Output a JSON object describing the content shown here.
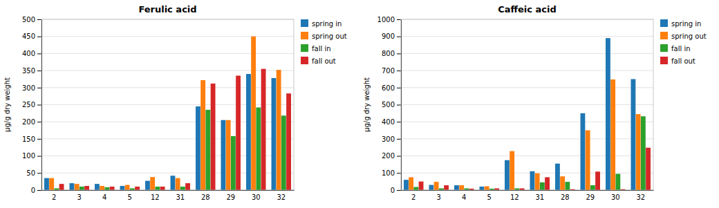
{
  "chart_data": [
    {
      "type": "bar",
      "title": "Ferulic acid",
      "categories": [
        "2",
        "3",
        "4",
        "5",
        "12",
        "31",
        "28",
        "29",
        "30",
        "32"
      ],
      "series": [
        {
          "name": "spring in",
          "values": [
            35,
            20,
            18,
            12,
            27,
            42,
            245,
            205,
            340,
            328
          ]
        },
        {
          "name": "spring out",
          "values": [
            35,
            18,
            12,
            15,
            38,
            35,
            322,
            205,
            450,
            352
          ]
        },
        {
          "name": "fall in",
          "values": [
            5,
            10,
            8,
            5,
            10,
            10,
            235,
            158,
            242,
            218
          ]
        },
        {
          "name": "fall out",
          "values": [
            18,
            12,
            10,
            10,
            10,
            20,
            312,
            335,
            355,
            283
          ]
        }
      ],
      "ylabel": "μg/g dry weight",
      "ylim": [
        0,
        500
      ],
      "yticks": [
        0,
        50,
        100,
        150,
        200,
        250,
        300,
        350,
        400,
        450,
        500
      ],
      "grid": true,
      "legend": "right"
    },
    {
      "type": "bar",
      "title": "Caffeic acid",
      "categories": [
        "2",
        "3",
        "4",
        "5",
        "12",
        "31",
        "28",
        "29",
        "30",
        "32"
      ],
      "series": [
        {
          "name": "spring in",
          "values": [
            60,
            30,
            28,
            20,
            175,
            110,
            155,
            450,
            890,
            650
          ]
        },
        {
          "name": "spring out",
          "values": [
            75,
            48,
            28,
            22,
            228,
            98,
            80,
            350,
            648,
            445
          ]
        },
        {
          "name": "fall in",
          "values": [
            18,
            10,
            10,
            8,
            10,
            45,
            48,
            28,
            95,
            432
          ]
        },
        {
          "name": "fall out",
          "values": [
            50,
            28,
            8,
            10,
            10,
            75,
            5,
            108,
            5,
            248
          ]
        }
      ],
      "ylabel": "μg/g dry weight",
      "ylim": [
        0,
        1000
      ],
      "yticks": [
        0,
        100,
        200,
        300,
        400,
        500,
        600,
        700,
        800,
        900,
        1000
      ],
      "grid": true,
      "legend": "right"
    }
  ]
}
